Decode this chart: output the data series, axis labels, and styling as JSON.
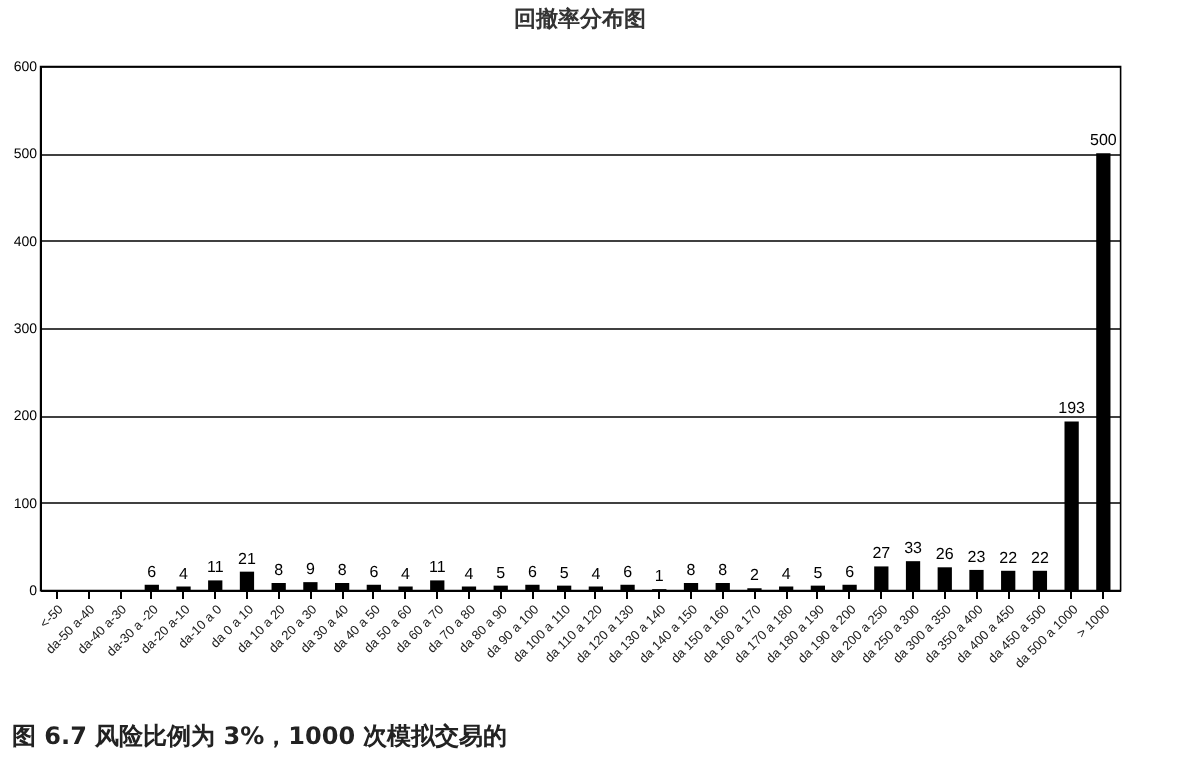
{
  "chart_data": {
    "type": "bar",
    "title": "回撤率分布图",
    "categories": [
      "<-50",
      "da-50 a-40",
      "da-40 a-30",
      "da-30 a -20",
      "da-20 a-10",
      "da-10 a 0",
      "da 0 a 10",
      "da 10 a 20",
      "da 20 a 30",
      "da 30 a 40",
      "da 40 a 50",
      "da 50 a 60",
      "da 60 a 70",
      "da 70 a 80",
      "da 80 a 90",
      "da 90 a 100",
      "da 100 a 110",
      "da 110 a 120",
      "da 120 a 130",
      "da 130 a 140",
      "da 140 a 150",
      "da 150 a 160",
      "da 160 a 170",
      "da 170 a 180",
      "da 180 a 190",
      "da 190 a 200",
      "da 200 a 250",
      "da 250 a 300",
      "da 300 a 350",
      "da 350 a 400",
      "da 400 a 450",
      "da 450 a 500",
      "da 500 a 1000",
      "> 1000"
    ],
    "values": [
      0,
      0,
      0,
      6,
      4,
      11,
      21,
      8,
      9,
      8,
      6,
      4,
      11,
      4,
      5,
      6,
      5,
      4,
      6,
      1,
      8,
      8,
      2,
      4,
      5,
      6,
      27,
      33,
      26,
      23,
      22,
      22,
      193,
      500
    ],
    "value_labels": [
      null,
      null,
      null,
      "6",
      "4",
      "11",
      "21",
      "8",
      "9",
      "8",
      "6",
      "4",
      "11",
      "4",
      "5",
      "6",
      "5",
      "4",
      "6",
      "1",
      "8",
      "8",
      "2",
      "4",
      "5",
      "6",
      "27",
      "33",
      "26",
      "23",
      "22",
      "22",
      "193",
      "500"
    ],
    "color": "#000000",
    "ylim": [
      0,
      600
    ],
    "yticks": [
      0,
      100,
      200,
      300,
      400,
      500,
      600
    ],
    "grid": "y",
    "annotations": [
      "图 6.7  风险比例为 3%，1000 次模拟交易的"
    ]
  }
}
